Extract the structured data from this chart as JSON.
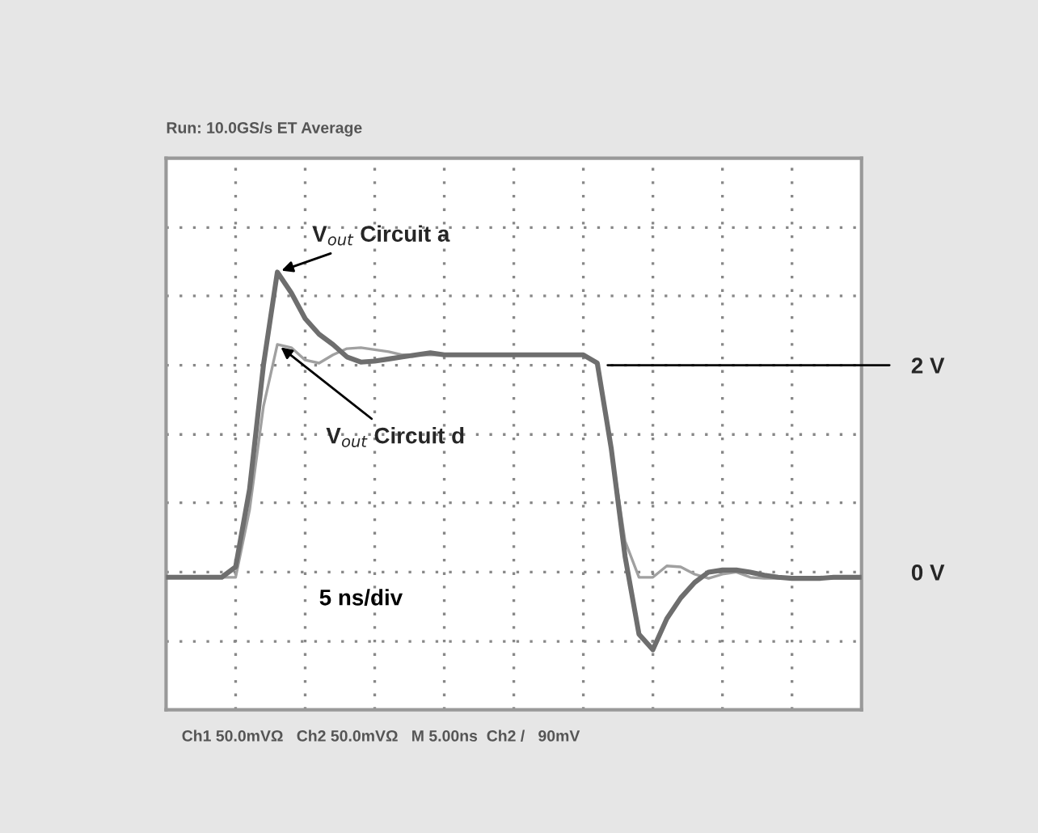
{
  "chart_data": {
    "type": "line",
    "categories": [
      null,
      null,
      null,
      null,
      null,
      null,
      null,
      null,
      null,
      null,
      null,
      null,
      null,
      null,
      null,
      null,
      null,
      null,
      null,
      null,
      null,
      null,
      null,
      null,
      null,
      null,
      null,
      null,
      null,
      null,
      null,
      null,
      null,
      null,
      null,
      null,
      null,
      null,
      null,
      null,
      null,
      null,
      null,
      null,
      null,
      null,
      null,
      null,
      null,
      null,
      null
    ],
    "series": [
      {
        "color": "#6e6e6e",
        "line_style": "solid",
        "values": [
          -0.05,
          -0.05,
          -0.05,
          -0.05,
          -0.05,
          0.05,
          0.8,
          2.0,
          2.9,
          2.7,
          2.45,
          2.3,
          2.2,
          2.08,
          2.03,
          2.04,
          2.06,
          2.08,
          2.1,
          2.12,
          2.1,
          2.1,
          2.1,
          2.1,
          2.1,
          2.1,
          2.1,
          2.1,
          2.1,
          2.1,
          2.1,
          2.02,
          1.2,
          0.15,
          -0.6,
          -0.75,
          -0.45,
          -0.25,
          -0.1,
          0.0,
          0.02,
          0.02,
          0.0,
          -0.03,
          -0.05,
          -0.06,
          -0.06,
          -0.06,
          -0.05,
          -0.05,
          -0.05
        ]
      },
      {
        "color": "#a0a0a0",
        "line_style": "solid",
        "values": [
          -0.05,
          -0.05,
          -0.05,
          -0.05,
          -0.05,
          -0.05,
          0.6,
          1.6,
          2.2,
          2.17,
          2.05,
          2.02,
          2.1,
          2.16,
          2.17,
          2.15,
          2.13,
          2.1,
          2.1,
          2.1,
          2.1,
          2.1,
          2.1,
          2.1,
          2.1,
          2.1,
          2.1,
          2.1,
          2.1,
          2.1,
          2.1,
          2.02,
          1.2,
          0.3,
          -0.05,
          -0.05,
          0.06,
          0.05,
          -0.02,
          -0.06,
          -0.02,
          0.0,
          -0.05,
          -0.06,
          -0.06,
          -0.06,
          -0.06,
          -0.06,
          -0.06,
          -0.06,
          -0.06
        ]
      }
    ],
    "ylim": [
      -1.33,
      4.0
    ],
    "yticks": [
      {
        "value": -0.67,
        "label": null
      },
      {
        "value": 0,
        "label": "0 V"
      },
      {
        "value": 0.67,
        "label": null
      },
      {
        "value": 1.33,
        "label": null
      },
      {
        "value": 2,
        "label": "2 V"
      },
      {
        "value": 2.67,
        "label": null
      },
      {
        "value": 3.33,
        "label": null
      }
    ],
    "tick_labels": "y",
    "grid": true,
    "ref_lines": [
      {
        "axis": "y",
        "value": 2,
        "line_style": "solid",
        "color": "#000000"
      }
    ],
    "annotations": [
      "V$_{out}$ Circuit a",
      "V$_{out}$ Circuit d",
      "5 ns/div",
      "Run: 10.0GS/s ET Average",
      "Ch1 50.0mVΩ   Ch2 50.0mVΩ   M 5.00ns  Ch2 /   90mV"
    ]
  }
}
